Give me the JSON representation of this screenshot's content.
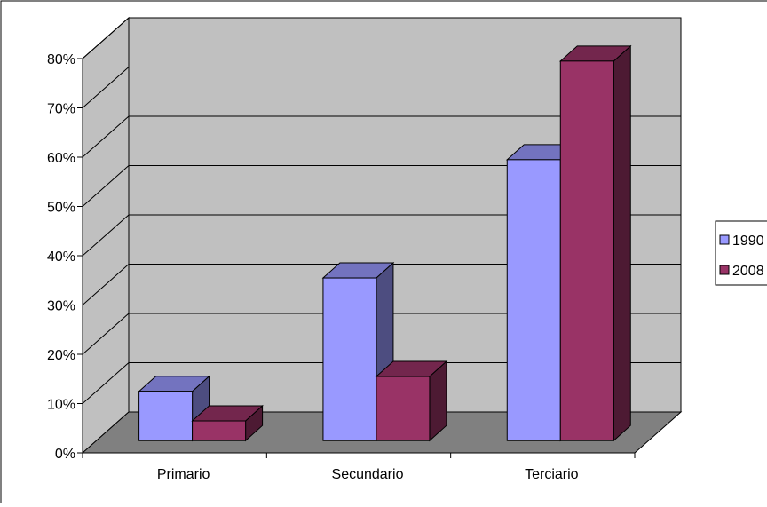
{
  "colors": {
    "wall": "#c0c0c0",
    "floor": "#808080",
    "grid": "#000000"
  },
  "chart_data": {
    "type": "bar",
    "categories": [
      "Primario",
      "Secundario",
      "Terciario"
    ],
    "series": [
      {
        "name": "1990",
        "values": [
          10,
          33,
          57
        ],
        "color": "#9999ff",
        "side_color": "#4d4d80",
        "top_color": "#7373bf"
      },
      {
        "name": "2008",
        "values": [
          4,
          13,
          77
        ],
        "color": "#993366",
        "side_color": "#4d1a33",
        "top_color": "#73264d"
      }
    ],
    "yticks": [
      "0%",
      "10%",
      "20%",
      "30%",
      "40%",
      "50%",
      "60%",
      "70%",
      "80%"
    ],
    "ylim": [
      0,
      80
    ],
    "title": "",
    "xlabel": "",
    "ylabel": "",
    "grid": true,
    "legend_position": "right",
    "bar_style": "3d"
  }
}
